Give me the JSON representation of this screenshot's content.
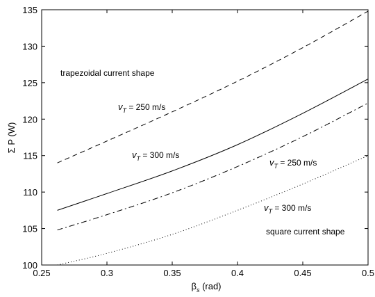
{
  "chart_data": {
    "type": "line",
    "xlabel": {
      "main": "β",
      "sub": "s",
      "unit": " (rad)"
    },
    "ylabel": "Σ P (W)",
    "xlim": [
      0.25,
      0.5
    ],
    "ylim": [
      100,
      135
    ],
    "x_ticks": [
      "0.25",
      "0.3",
      "0.35",
      "0.4",
      "0.45",
      "0.5"
    ],
    "y_ticks": [
      "100",
      "105",
      "110",
      "115",
      "120",
      "125",
      "130",
      "135"
    ],
    "grid": false,
    "series": [
      {
        "style": "dashed",
        "x": [
          0.262,
          0.3,
          0.35,
          0.4,
          0.45,
          0.5
        ],
        "y": [
          114.0,
          117.0,
          121.0,
          125.2,
          129.8,
          134.8
        ]
      },
      {
        "style": "solid",
        "x": [
          0.262,
          0.3,
          0.35,
          0.4,
          0.45,
          0.5
        ],
        "y": [
          107.5,
          109.8,
          112.9,
          116.5,
          120.8,
          125.5
        ]
      },
      {
        "style": "dashdot",
        "x": [
          0.262,
          0.3,
          0.35,
          0.4,
          0.45,
          0.5
        ],
        "y": [
          104.8,
          106.9,
          109.9,
          113.5,
          117.6,
          122.2
        ]
      },
      {
        "style": "dotted",
        "x": [
          0.262,
          0.3,
          0.35,
          0.4,
          0.45,
          0.5
        ],
        "y": [
          100.0,
          101.6,
          104.2,
          107.5,
          111.1,
          115.0
        ]
      }
    ],
    "annotations": {
      "trapezoidal": "trapezoidal current shape",
      "square": "square current shape",
      "v_main": "v",
      "v_sub": "T",
      "v250": " = 250 m/s",
      "v300": " = 300 m/s"
    }
  }
}
